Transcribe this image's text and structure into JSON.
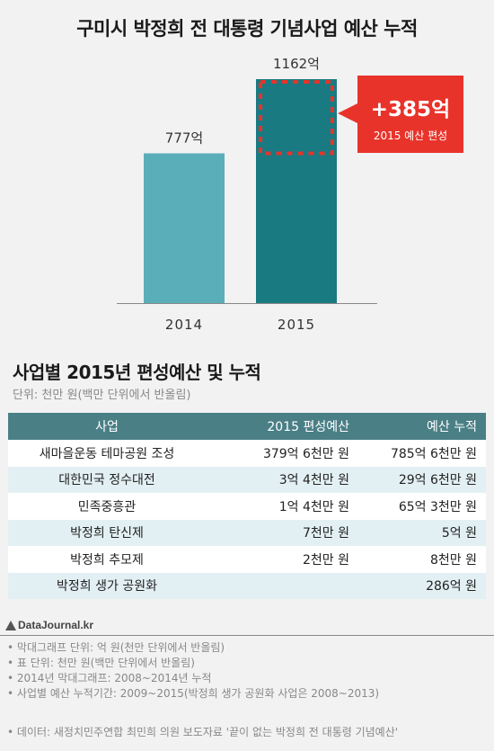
{
  "title": "구미시 박정희 전 대통령 기념사업 예산 누적",
  "chart_data": {
    "type": "bar",
    "categories": [
      "2014",
      "2015"
    ],
    "values": [
      777,
      1162
    ],
    "value_labels": [
      "777억",
      "1162억"
    ],
    "unit": "억",
    "increase": {
      "label": "+385억",
      "sub": "2015 예산 편성",
      "value": 385
    },
    "ylim": [
      0,
      1162
    ],
    "colors": {
      "bar_2014": "#5aaeb9",
      "bar_2015": "#197a82",
      "dash": "#e8332a",
      "callout": "#e8332a"
    }
  },
  "table_section": {
    "title": "사업별 2015년 편성예산 및 누적",
    "unit": "단위: 천만 원(백만 단위에서 반올림)",
    "headers": [
      "사업",
      "2015 편성예산",
      "예산 누적"
    ],
    "rows": [
      [
        "새마을운동 테마공원 조성",
        "379억 6천만 원",
        "785억 6천만 원"
      ],
      [
        "대한민국 정수대전",
        "3억 4천만 원",
        "29억 6천만 원"
      ],
      [
        "민족중흥관",
        "1억 4천만 원",
        "65억 3천만 원"
      ],
      [
        "박정희 탄신제",
        "7천만 원",
        "5억 원"
      ],
      [
        "박정희 추모제",
        "2천만 원",
        "8천만 원"
      ],
      [
        "박정희 생가 공원화",
        "",
        "286억 원"
      ]
    ]
  },
  "brand": "DataJournal.kr",
  "notes": [
    "막대그래프 단위: 억 원(천만 단위에서 반올림)",
    "표 단위: 천만 원(백만 단위에서 반올림)",
    "2014년 막대그래프: 2008~2014년 누적",
    "사업별 예산 누적기간: 2009~2015(박정희 생가 공원화 사업은 2008~2013)"
  ],
  "source": "데이터: 새정치민주연합 최민희 의원 보도자료 '끝이 없는 박정희 전 대통령 기념예산'"
}
